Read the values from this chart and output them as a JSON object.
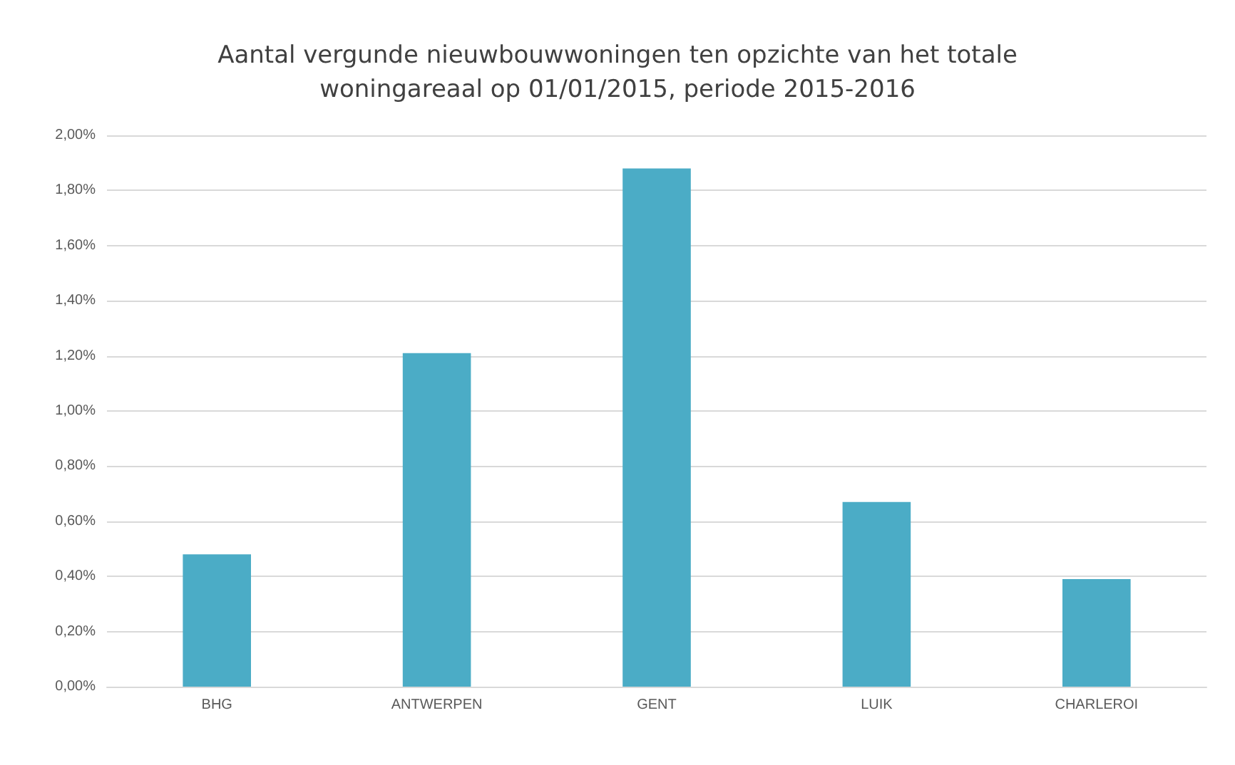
{
  "chart_data": {
    "type": "bar",
    "title": "Aantal vergunde nieuwbouwwoningen ten opzichte van het totale\nwoningareaal op 01/01/2015, periode 2015-2016",
    "categories": [
      "BHG",
      "ANTWERPEN",
      "GENT",
      "LUIK",
      "CHARLEROI"
    ],
    "values": [
      0.48,
      1.21,
      1.88,
      0.67,
      0.39
    ],
    "color": "#4bacc6",
    "ylim": [
      0,
      2
    ],
    "yticks": [
      {
        "value": 0,
        "label": "0,00%"
      },
      {
        "value": 0.2,
        "label": "0,20%"
      },
      {
        "value": 0.4,
        "label": "0,40%"
      },
      {
        "value": 0.6,
        "label": "0,60%"
      },
      {
        "value": 0.8,
        "label": "0,80%"
      },
      {
        "value": 1,
        "label": "1,00%"
      },
      {
        "value": 1.2,
        "label": "1,20%"
      },
      {
        "value": 1.4,
        "label": "1,40%"
      },
      {
        "value": 1.6,
        "label": "1,60%"
      },
      {
        "value": 1.8,
        "label": "1,80%"
      },
      {
        "value": 2,
        "label": "2,00%"
      }
    ],
    "grid": true
  }
}
